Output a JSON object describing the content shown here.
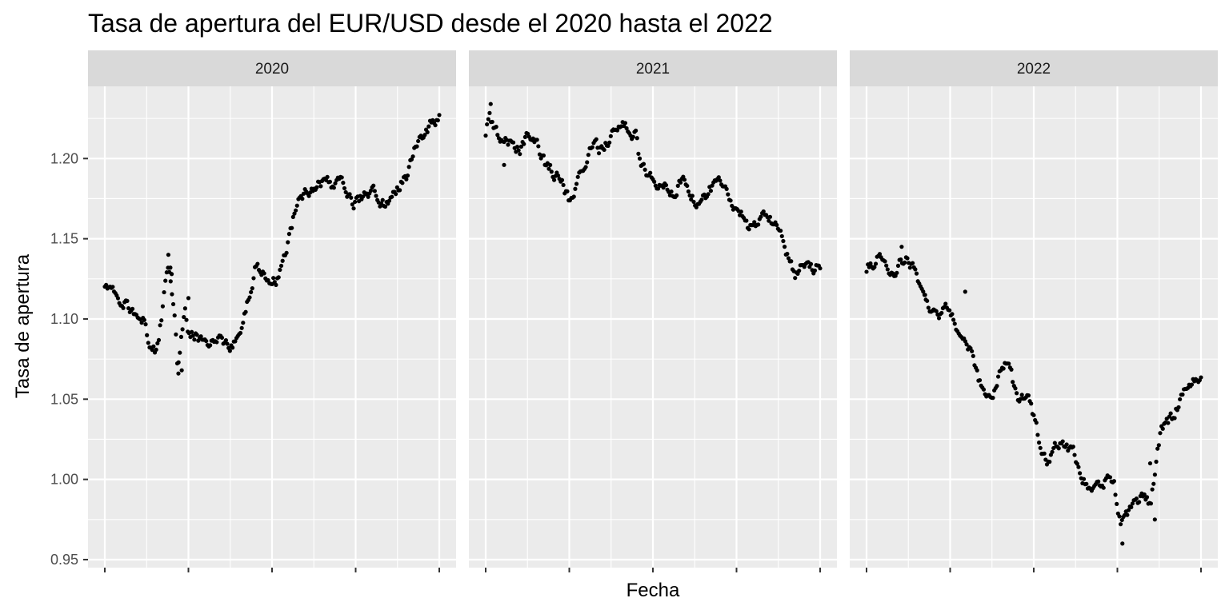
{
  "chart_data": {
    "type": "scatter",
    "title": "Tasa de apertura del EUR/USD desde el 2020 hasta el 2022",
    "xlabel": "Fecha",
    "ylabel": "Tasa de apertura",
    "ylim": [
      0.945,
      1.245
    ],
    "y_ticks": [
      0.95,
      1.0,
      1.05,
      1.1,
      1.15,
      1.2
    ],
    "y_tick_labels": [
      "0.95",
      "1.00",
      "1.05",
      "1.10",
      "1.15",
      "1.20"
    ],
    "x_tick_labels": [],
    "x_range": [
      0,
      1
    ],
    "grid": true,
    "point_color": "#000000",
    "panels": [
      {
        "label": "2020",
        "anchors": [
          [
            0.0,
            1.121
          ],
          [
            0.03,
            1.115
          ],
          [
            0.06,
            1.11
          ],
          [
            0.09,
            1.103
          ],
          [
            0.115,
            1.1
          ],
          [
            0.13,
            1.088
          ],
          [
            0.14,
            1.082
          ],
          [
            0.15,
            1.08
          ],
          [
            0.16,
            1.088
          ],
          [
            0.17,
            1.102
          ],
          [
            0.18,
            1.118
          ],
          [
            0.19,
            1.133
          ],
          [
            0.2,
            1.118
          ],
          [
            0.21,
            1.098
          ],
          [
            0.218,
            1.068
          ],
          [
            0.228,
            1.088
          ],
          [
            0.24,
            1.105
          ],
          [
            0.25,
            1.088
          ],
          [
            0.27,
            1.09
          ],
          [
            0.3,
            1.085
          ],
          [
            0.33,
            1.088
          ],
          [
            0.36,
            1.083
          ],
          [
            0.39,
            1.085
          ],
          [
            0.41,
            1.095
          ],
          [
            0.43,
            1.115
          ],
          [
            0.45,
            1.133
          ],
          [
            0.47,
            1.128
          ],
          [
            0.49,
            1.125
          ],
          [
            0.51,
            1.124
          ],
          [
            0.53,
            1.132
          ],
          [
            0.55,
            1.148
          ],
          [
            0.57,
            1.168
          ],
          [
            0.58,
            1.178
          ],
          [
            0.6,
            1.18
          ],
          [
            0.63,
            1.183
          ],
          [
            0.66,
            1.187
          ],
          [
            0.69,
            1.183
          ],
          [
            0.72,
            1.183
          ],
          [
            0.74,
            1.17
          ],
          [
            0.76,
            1.173
          ],
          [
            0.78,
            1.178
          ],
          [
            0.8,
            1.18
          ],
          [
            0.82,
            1.173
          ],
          [
            0.84,
            1.172
          ],
          [
            0.86,
            1.18
          ],
          [
            0.88,
            1.184
          ],
          [
            0.9,
            1.188
          ],
          [
            0.92,
            1.2
          ],
          [
            0.935,
            1.21
          ],
          [
            0.95,
            1.213
          ],
          [
            0.97,
            1.22
          ],
          [
            0.985,
            1.222
          ],
          [
            1.0,
            1.228
          ]
        ],
        "spikes": [
          [
            0.19,
            1.14
          ],
          [
            0.196,
            1.132
          ],
          [
            0.2,
            1.128
          ],
          [
            0.22,
            1.066
          ],
          [
            0.23,
            1.068
          ],
          [
            0.25,
            1.113
          ]
        ]
      },
      {
        "label": "2021",
        "anchors": [
          [
            0.0,
            1.217
          ],
          [
            0.01,
            1.226
          ],
          [
            0.02,
            1.222
          ],
          [
            0.04,
            1.213
          ],
          [
            0.06,
            1.212
          ],
          [
            0.08,
            1.21
          ],
          [
            0.1,
            1.205
          ],
          [
            0.12,
            1.212
          ],
          [
            0.14,
            1.212
          ],
          [
            0.16,
            1.205
          ],
          [
            0.18,
            1.195
          ],
          [
            0.2,
            1.192
          ],
          [
            0.22,
            1.188
          ],
          [
            0.24,
            1.178
          ],
          [
            0.25,
            1.174
          ],
          [
            0.27,
            1.183
          ],
          [
            0.29,
            1.193
          ],
          [
            0.31,
            1.203
          ],
          [
            0.33,
            1.207
          ],
          [
            0.35,
            1.205
          ],
          [
            0.37,
            1.212
          ],
          [
            0.39,
            1.22
          ],
          [
            0.41,
            1.221
          ],
          [
            0.43,
            1.219
          ],
          [
            0.45,
            1.215
          ],
          [
            0.46,
            1.198
          ],
          [
            0.48,
            1.192
          ],
          [
            0.5,
            1.186
          ],
          [
            0.53,
            1.182
          ],
          [
            0.56,
            1.18
          ],
          [
            0.58,
            1.185
          ],
          [
            0.6,
            1.183
          ],
          [
            0.62,
            1.175
          ],
          [
            0.64,
            1.17
          ],
          [
            0.66,
            1.176
          ],
          [
            0.68,
            1.184
          ],
          [
            0.7,
            1.185
          ],
          [
            0.72,
            1.18
          ],
          [
            0.74,
            1.172
          ],
          [
            0.76,
            1.168
          ],
          [
            0.78,
            1.158
          ],
          [
            0.8,
            1.157
          ],
          [
            0.82,
            1.162
          ],
          [
            0.84,
            1.165
          ],
          [
            0.86,
            1.16
          ],
          [
            0.88,
            1.158
          ],
          [
            0.895,
            1.145
          ],
          [
            0.91,
            1.135
          ],
          [
            0.925,
            1.125
          ],
          [
            0.94,
            1.13
          ],
          [
            0.96,
            1.13
          ],
          [
            0.98,
            1.131
          ],
          [
            1.0,
            1.133
          ]
        ],
        "spikes": [
          [
            0.015,
            1.234
          ],
          [
            0.055,
            1.196
          ]
        ]
      },
      {
        "label": "2022",
        "anchors": [
          [
            0.0,
            1.132
          ],
          [
            0.02,
            1.135
          ],
          [
            0.04,
            1.14
          ],
          [
            0.06,
            1.132
          ],
          [
            0.08,
            1.125
          ],
          [
            0.1,
            1.135
          ],
          [
            0.12,
            1.138
          ],
          [
            0.14,
            1.132
          ],
          [
            0.16,
            1.122
          ],
          [
            0.18,
            1.11
          ],
          [
            0.2,
            1.102
          ],
          [
            0.22,
            1.103
          ],
          [
            0.24,
            1.106
          ],
          [
            0.26,
            1.1
          ],
          [
            0.27,
            1.09
          ],
          [
            0.29,
            1.085
          ],
          [
            0.31,
            1.08
          ],
          [
            0.33,
            1.065
          ],
          [
            0.35,
            1.053
          ],
          [
            0.37,
            1.05
          ],
          [
            0.39,
            1.06
          ],
          [
            0.41,
            1.072
          ],
          [
            0.43,
            1.068
          ],
          [
            0.45,
            1.05
          ],
          [
            0.47,
            1.05
          ],
          [
            0.49,
            1.048
          ],
          [
            0.51,
            1.03
          ],
          [
            0.52,
            1.018
          ],
          [
            0.54,
            1.01
          ],
          [
            0.56,
            1.02
          ],
          [
            0.58,
            1.02
          ],
          [
            0.6,
            1.02
          ],
          [
            0.62,
            1.018
          ],
          [
            0.64,
            1.005
          ],
          [
            0.66,
            0.995
          ],
          [
            0.68,
            0.998
          ],
          [
            0.7,
            0.995
          ],
          [
            0.72,
            1.0
          ],
          [
            0.74,
            0.995
          ],
          [
            0.75,
            0.985
          ],
          [
            0.76,
            0.97
          ],
          [
            0.77,
            0.975
          ],
          [
            0.79,
            0.98
          ],
          [
            0.81,
            0.985
          ],
          [
            0.83,
            0.99
          ],
          [
            0.85,
            0.985
          ],
          [
            0.86,
            1.0
          ],
          [
            0.87,
            1.015
          ],
          [
            0.88,
            1.03
          ],
          [
            0.9,
            1.035
          ],
          [
            0.92,
            1.04
          ],
          [
            0.94,
            1.05
          ],
          [
            0.96,
            1.055
          ],
          [
            0.98,
            1.063
          ],
          [
            1.0,
            1.065
          ]
        ],
        "spikes": [
          [
            0.105,
            1.145
          ],
          [
            0.175,
            1.115
          ],
          [
            0.295,
            1.117
          ],
          [
            0.765,
            0.96
          ],
          [
            0.848,
            1.01
          ],
          [
            0.862,
            0.975
          ]
        ]
      }
    ]
  }
}
